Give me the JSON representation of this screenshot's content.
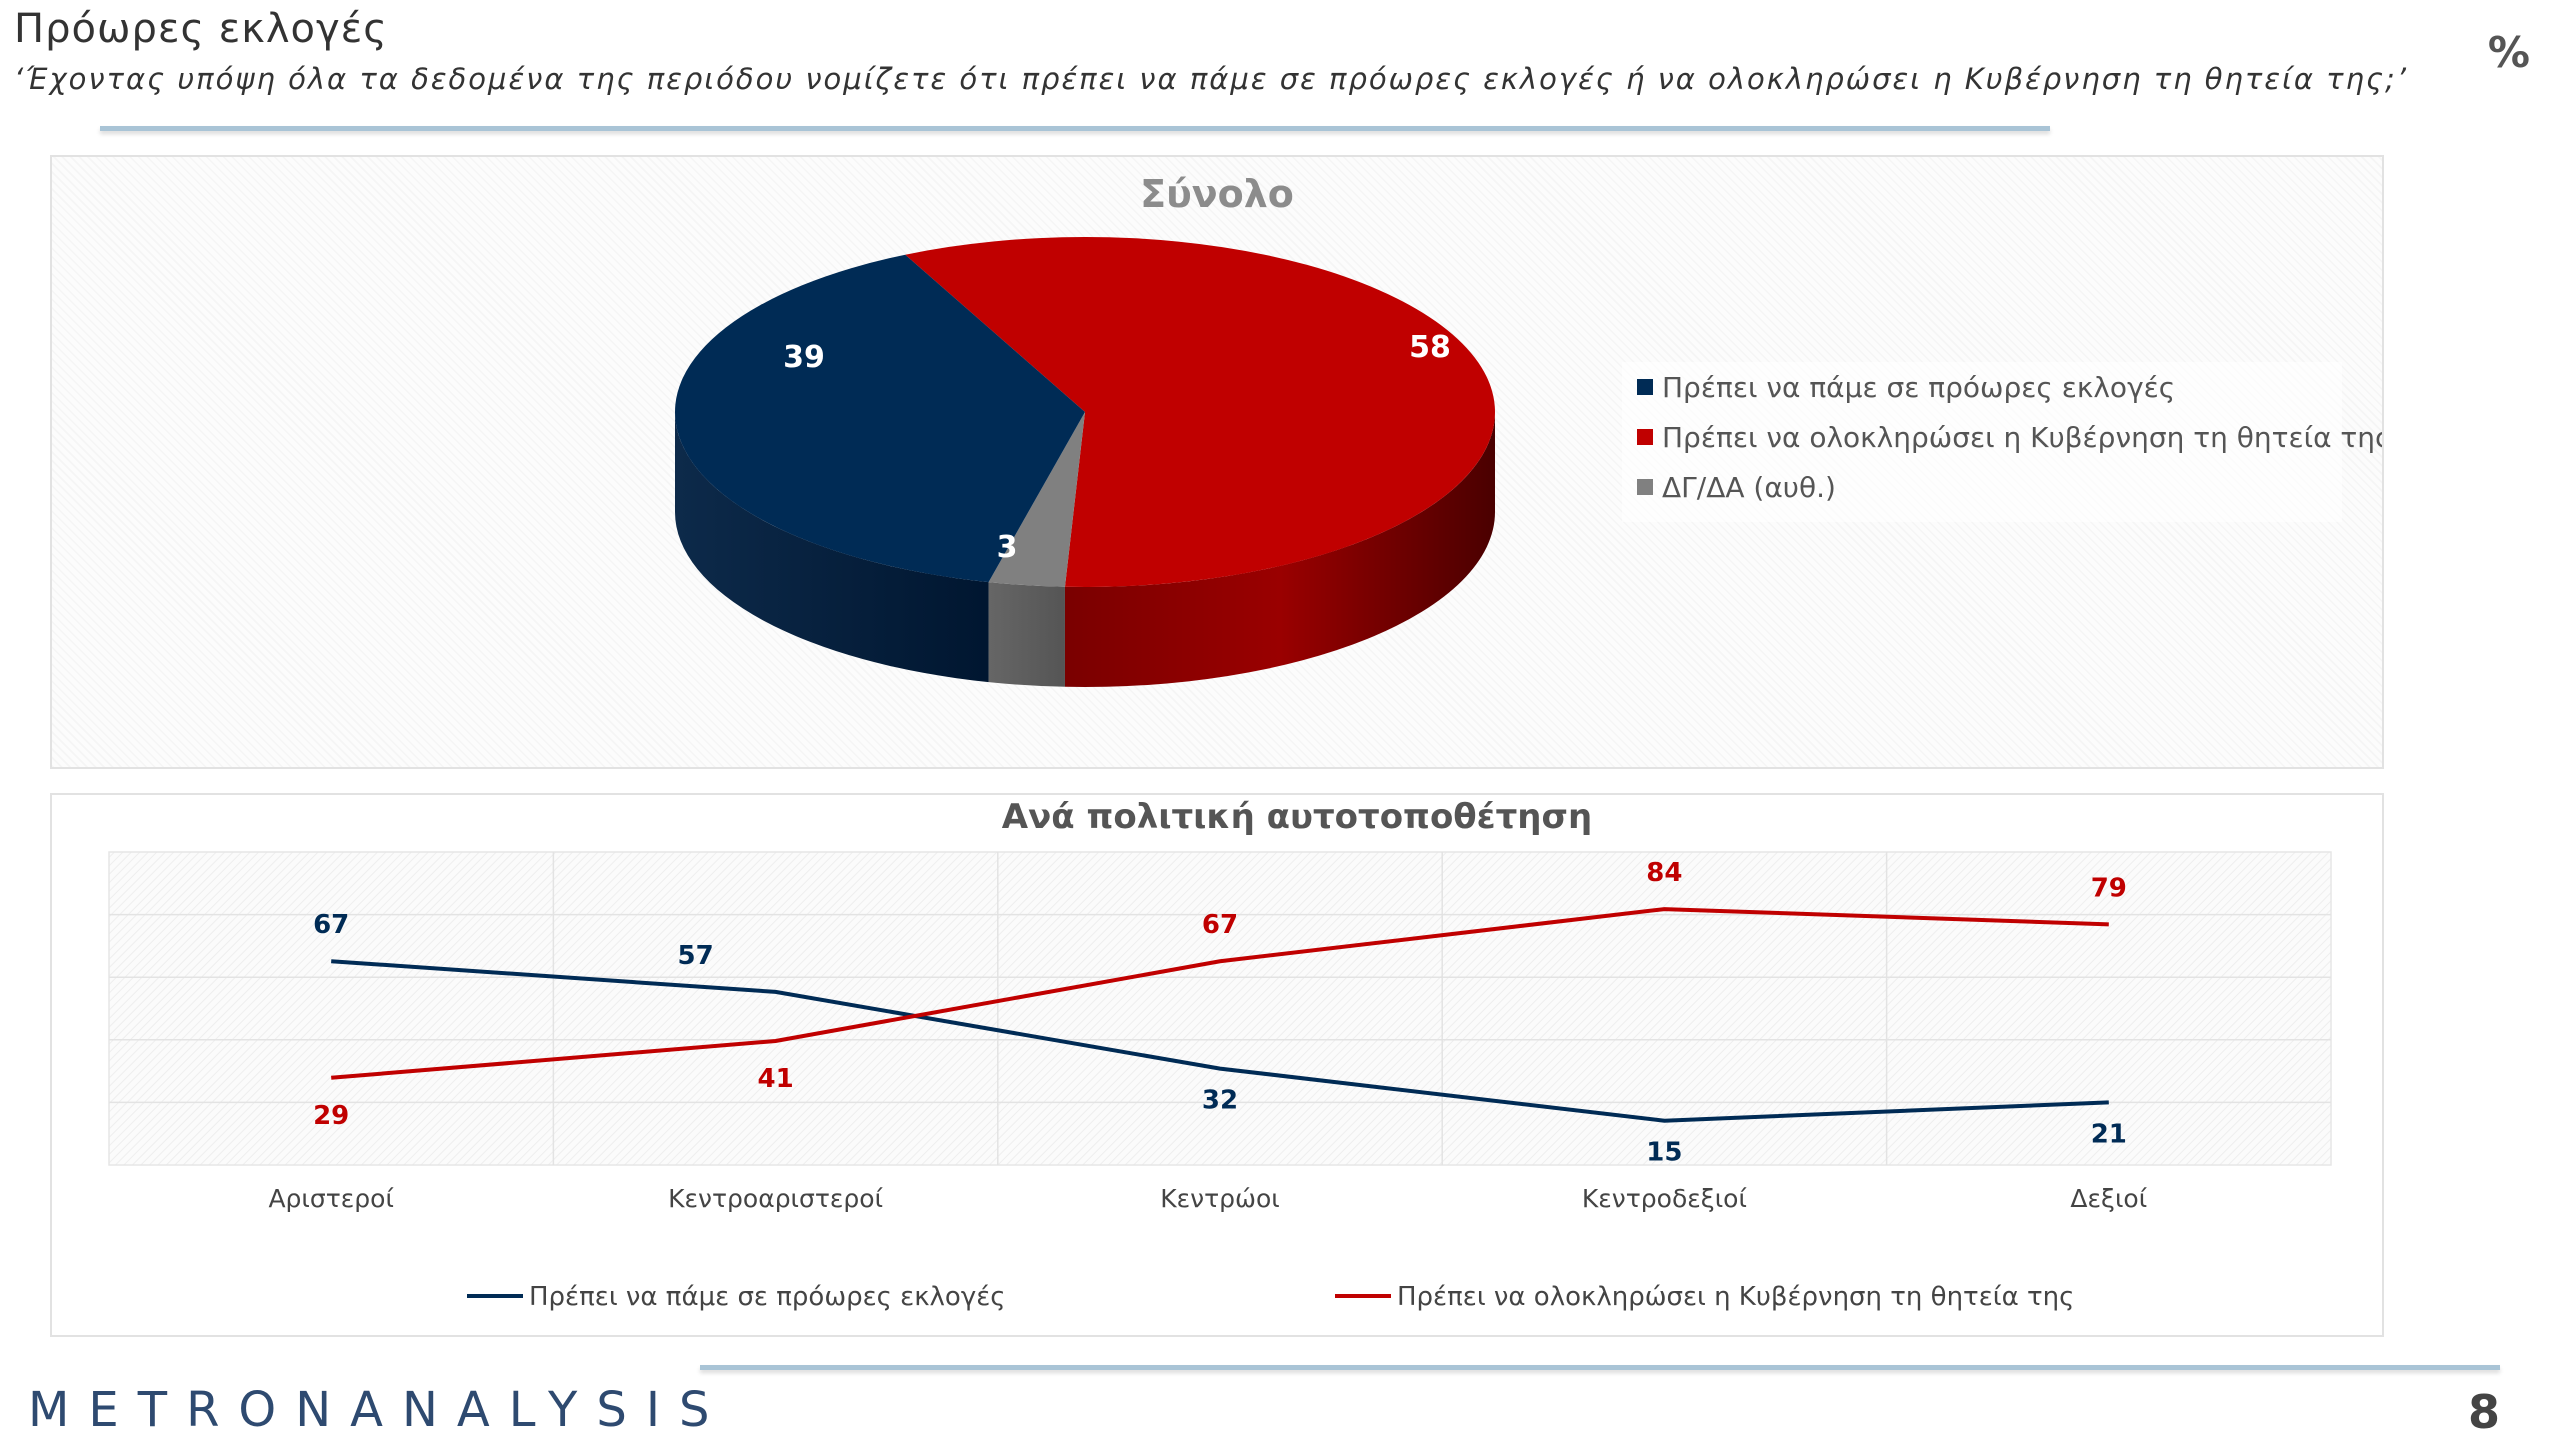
{
  "header": {
    "title": "Πρόωρες εκλογές",
    "subtitle": "‘Έχοντας υπόψη όλα τα δεδομένα της περιόδου νομίζετε ότι πρέπει να πάμε σε πρόωρες εκλογές ή να ολοκληρώσει η Κυβέρνηση τη θητεία της;’",
    "unit": "%"
  },
  "footer": {
    "logo_left": "METRON",
    "logo_right": "ANALYSIS",
    "page_number": "8"
  },
  "colors": {
    "navy": "#002b55",
    "red": "#c00000",
    "gray": "#808080"
  },
  "chart_data": [
    {
      "type": "pie",
      "title": "Σύνολο",
      "slices": [
        {
          "label": "Πρέπει να πάμε σε πρόωρες εκλογές",
          "value": 39,
          "color": "#002b55"
        },
        {
          "label": "Πρέπει να ολοκληρώσει η Κυβέρνηση τη θητεία της",
          "value": 58,
          "color": "#c00000"
        },
        {
          "label": "ΔΓ/ΔΑ (αυθ.)",
          "value": 3,
          "color": "#808080"
        }
      ],
      "legend_position": "right"
    },
    {
      "type": "line",
      "title": "Ανά πολιτική αυτοτοποθέτηση",
      "categories": [
        "Αριστεροί",
        "Κεντροαριστεροί",
        "Κεντρώοι",
        "Κεντροδεξιοί",
        "Δεξιοί"
      ],
      "series": [
        {
          "name": "Πρέπει να πάμε σε πρόωρες εκλογές",
          "values": [
            67,
            57,
            32,
            15,
            21
          ],
          "color": "#002b55"
        },
        {
          "name": "Πρέπει να ολοκληρώσει η Κυβέρνηση τη θητεία της",
          "values": [
            29,
            41,
            67,
            84,
            79
          ],
          "color": "#c00000"
        }
      ],
      "ylim": [
        0,
        100
      ],
      "grid": true,
      "legend_position": "bottom"
    }
  ]
}
